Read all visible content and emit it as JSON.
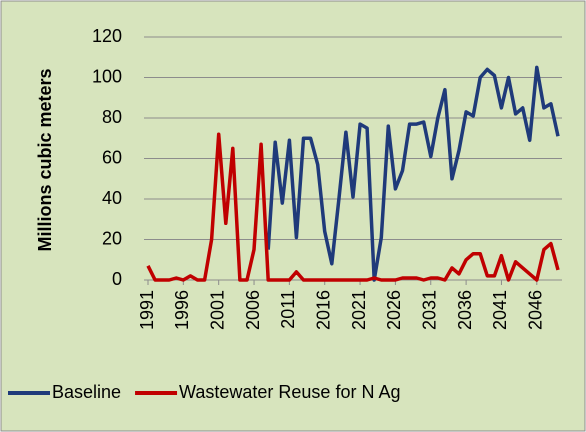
{
  "chart_data": {
    "type": "line",
    "y_label": "Millions cubic meters",
    "x": [
      1991,
      1992,
      1993,
      1994,
      1995,
      1996,
      1997,
      1998,
      1999,
      2000,
      2001,
      2002,
      2003,
      2004,
      2005,
      2006,
      2007,
      2008,
      2009,
      2010,
      2011,
      2012,
      2013,
      2014,
      2015,
      2016,
      2017,
      2018,
      2019,
      2020,
      2021,
      2022,
      2023,
      2024,
      2025,
      2026,
      2027,
      2028,
      2029,
      2030,
      2031,
      2032,
      2033,
      2034,
      2035,
      2036,
      2037,
      2038,
      2039,
      2040,
      2041,
      2042,
      2043,
      2044,
      2045,
      2046,
      2047,
      2048,
      2049
    ],
    "series": [
      {
        "name": "Baseline",
        "color": "#1f3a7a",
        "values": [
          null,
          null,
          null,
          null,
          null,
          null,
          null,
          null,
          null,
          null,
          null,
          null,
          null,
          null,
          null,
          null,
          null,
          15,
          68,
          38,
          69,
          21,
          70,
          70,
          57,
          24,
          8,
          40,
          73,
          41,
          77,
          75,
          0,
          21,
          76,
          45,
          54,
          77,
          77,
          78,
          61,
          80,
          94,
          50,
          64,
          83,
          81,
          100,
          104,
          101,
          85,
          100,
          82,
          85,
          69,
          105,
          85,
          87,
          71
        ]
      },
      {
        "name": "Wastewater Reuse for N Ag",
        "color": "#c00000",
        "values": [
          7,
          0,
          0,
          0,
          1,
          0,
          2,
          0,
          0,
          20,
          72,
          28,
          65,
          0,
          0,
          15,
          67,
          0,
          0,
          0,
          0,
          4,
          0,
          0,
          0,
          0,
          0,
          0,
          0,
          0,
          0,
          0,
          1,
          0,
          0,
          0,
          1,
          1,
          1,
          0,
          1,
          1,
          0,
          6,
          3,
          10,
          13,
          13,
          2,
          2,
          12,
          0,
          9,
          6,
          3,
          0,
          15,
          18,
          5
        ]
      }
    ],
    "xlim": [
      1991,
      2049
    ],
    "xticks": [
      1991,
      1996,
      2001,
      2006,
      2011,
      2016,
      2021,
      2026,
      2031,
      2036,
      2041,
      2046
    ],
    "ylim": [
      0,
      120
    ],
    "yticks": [
      0,
      20,
      40,
      60,
      80,
      100,
      120
    ],
    "grid": true,
    "legend": "bottom"
  }
}
